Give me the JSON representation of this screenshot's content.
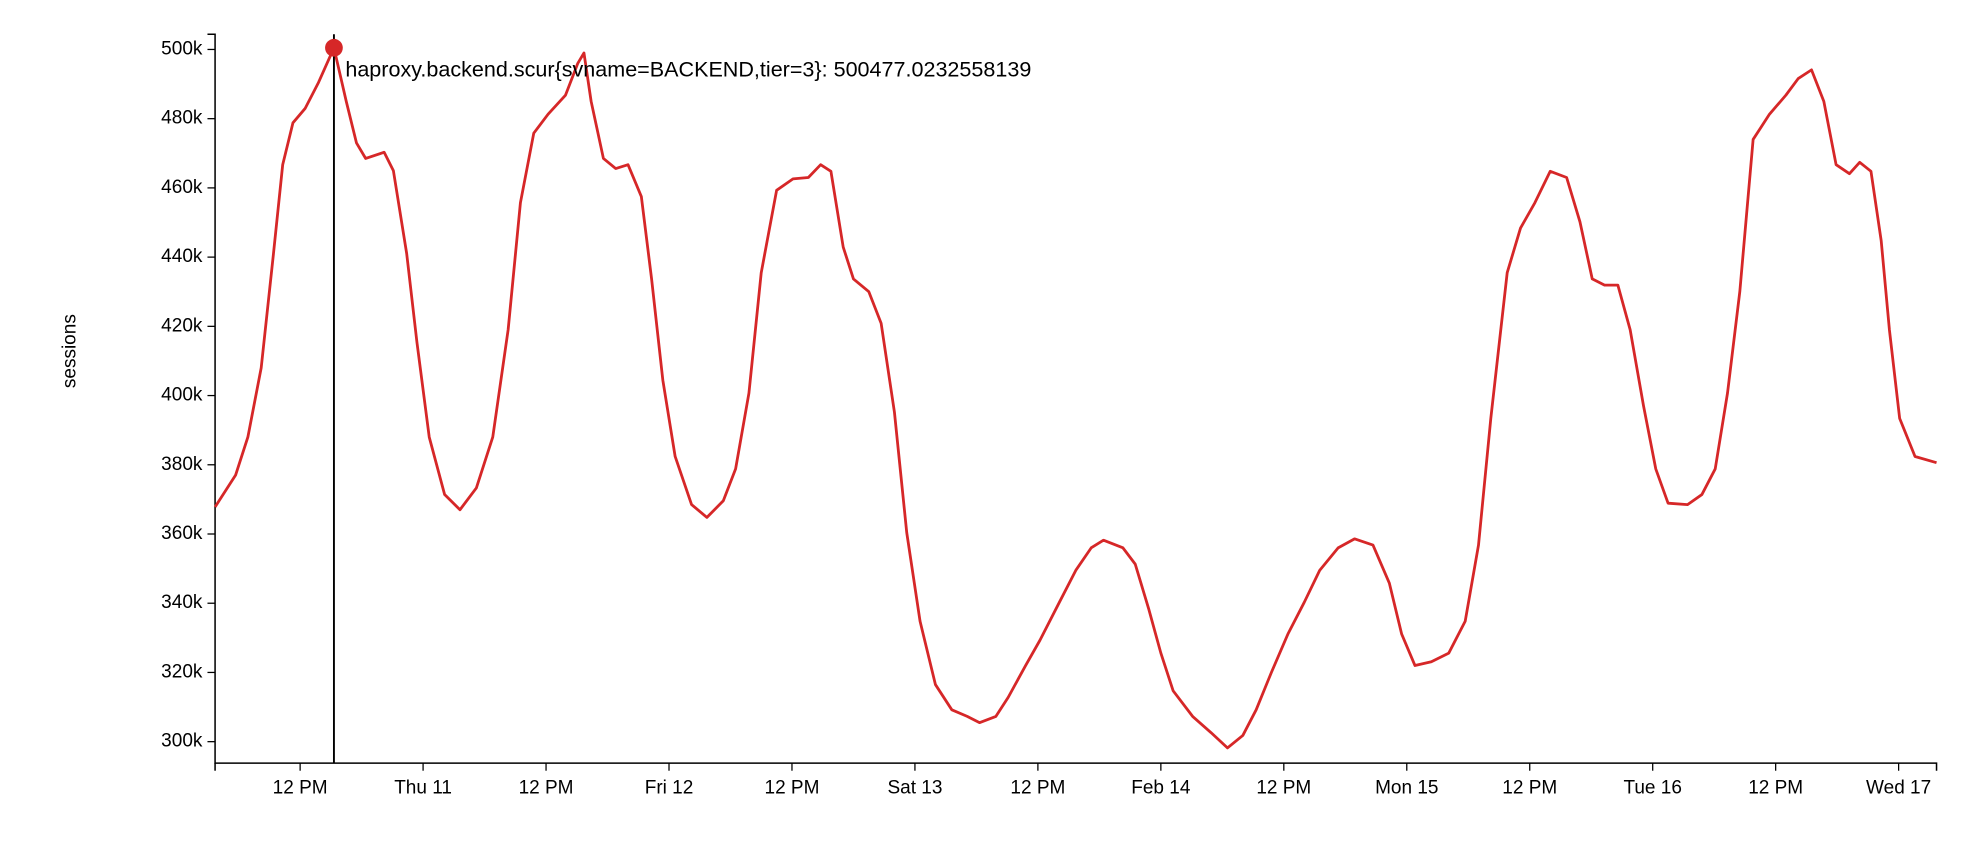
{
  "chart_data": {
    "type": "line",
    "y_label": "sessions",
    "annotation": "haproxy.backend.scur{svname=BACKEND,tier=3}: 500477.0232558139",
    "highlight_index": 9,
    "ylim": [
      293800,
      504400
    ],
    "yticks": [
      {
        "value": 300000,
        "label": "300k"
      },
      {
        "value": 320000,
        "label": "320k"
      },
      {
        "value": 340000,
        "label": "340k"
      },
      {
        "value": 360000,
        "label": "360k"
      },
      {
        "value": 380000,
        "label": "380k"
      },
      {
        "value": 400000,
        "label": "400k"
      },
      {
        "value": 420000,
        "label": "420k"
      },
      {
        "value": 440000,
        "label": "440k"
      },
      {
        "value": 460000,
        "label": "460k"
      },
      {
        "value": 480000,
        "label": "480k"
      },
      {
        "value": 500000,
        "label": "500k"
      }
    ],
    "xlim": [
      3.7,
      171.7
    ],
    "xticks": [
      {
        "value": 12,
        "label": "12 PM"
      },
      {
        "value": 24,
        "label": "Thu 11"
      },
      {
        "value": 36,
        "label": "12 PM"
      },
      {
        "value": 48,
        "label": "Fri 12"
      },
      {
        "value": 60,
        "label": "12 PM"
      },
      {
        "value": 72,
        "label": "Sat 13"
      },
      {
        "value": 84,
        "label": "12 PM"
      },
      {
        "value": 96,
        "label": "Feb 14"
      },
      {
        "value": 108,
        "label": "12 PM"
      },
      {
        "value": 120,
        "label": "Mon 15"
      },
      {
        "value": 132,
        "label": "12 PM"
      },
      {
        "value": 144,
        "label": "Tue 16"
      },
      {
        "value": 156,
        "label": "12 PM"
      },
      {
        "value": 168,
        "label": "Wed 17"
      }
    ],
    "x": [
      3.7,
      5.7,
      6.9,
      8.2,
      9.4,
      10.3,
      11.3,
      12.5,
      13.8,
      15.3,
      16.5,
      17.5,
      18.4,
      20.2,
      21.1,
      22.4,
      23.4,
      24.6,
      26.1,
      27.6,
      29.2,
      30.8,
      32.3,
      33.5,
      34.8,
      36.2,
      37.9,
      39.1,
      39.7,
      40.4,
      41.6,
      42.8,
      44,
      45.3,
      46.3,
      47.4,
      48.6,
      50.2,
      51.7,
      53.3,
      54.5,
      55.8,
      57,
      58.5,
      60.1,
      61.6,
      62.8,
      63.8,
      65,
      66,
      67.5,
      68.7,
      70,
      71.2,
      72.5,
      74,
      75.6,
      77.1,
      78.3,
      79.9,
      81.1,
      82.8,
      84.2,
      86.1,
      87.7,
      89.2,
      90.4,
      92.3,
      93.5,
      94.8,
      96,
      97.2,
      99.1,
      100.9,
      102.5,
      104,
      105.3,
      106.8,
      108.4,
      110,
      111.5,
      113.3,
      114.9,
      116.7,
      118.3,
      119.5,
      120.8,
      122.4,
      124.1,
      125.7,
      127,
      128.2,
      129.8,
      131.1,
      132.5,
      134,
      135.6,
      136.9,
      138.1,
      139.3,
      140.6,
      141.8,
      143.1,
      144.3,
      145.5,
      147.4,
      148.8,
      150.1,
      151.3,
      152.5,
      153.8,
      155.4,
      157,
      158.2,
      159.5,
      160.7,
      161.9,
      163.2,
      164.2,
      165.3,
      166.3,
      167.1,
      168.1,
      169.6,
      171.7
    ],
    "series": [
      {
        "color": "#d62728",
        "values": [
          367800,
          377000,
          388000,
          408000,
          441000,
          466700,
          478800,
          483000,
          490500,
          500477.0232558139,
          485000,
          473000,
          468500,
          470300,
          465000,
          441000,
          415400,
          388000,
          371400,
          367000,
          373300,
          388000,
          419000,
          455700,
          475800,
          481300,
          486800,
          496000,
          499000,
          485000,
          468500,
          465600,
          466700,
          457500,
          433700,
          404400,
          382400,
          368500,
          364800,
          369600,
          378800,
          400700,
          435500,
          459300,
          462600,
          463000,
          466700,
          464800,
          442900,
          433700,
          430000,
          420900,
          395200,
          360400,
          334800,
          316500,
          309200,
          307300,
          305500,
          307300,
          312800,
          322000,
          329300,
          340300,
          349500,
          356000,
          358200,
          356000,
          351300,
          338500,
          325600,
          314700,
          307300,
          302600,
          298200,
          301800,
          309200,
          320100,
          331100,
          340300,
          349500,
          356000,
          358600,
          356800,
          345800,
          331100,
          322000,
          323100,
          325600,
          334800,
          356800,
          393400,
          435500,
          448400,
          455700,
          464800,
          463000,
          450200,
          433700,
          431900,
          431900,
          419000,
          397100,
          378800,
          368900,
          368500,
          371400,
          378800,
          400700,
          430000,
          474000,
          481300,
          486800,
          491600,
          494100,
          485000,
          466700,
          464100,
          467400,
          464800,
          444700,
          419000,
          393400,
          382400,
          380600
        ]
      }
    ]
  }
}
